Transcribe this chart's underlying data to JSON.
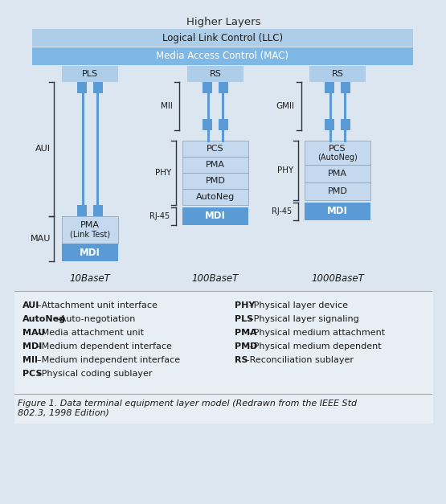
{
  "fig_bg": "#dce6f1",
  "box_blue_dark": "#5b9bd5",
  "box_blue_mid": "#7eb8e6",
  "box_blue_light": "#aecde8",
  "box_sublayer": "#c5d9ee",
  "title": "Higher Layers",
  "llc_label": "Logical Link Control (LLC)",
  "mac_label": "Media Access Control (MAC)",
  "col1_label": "10BaseT",
  "col2_label": "100BaseT",
  "col3_label": "1000BaseT",
  "legend_items_left": [
    [
      "AUI",
      "–Attachment unit interface"
    ],
    [
      "AutoNeg",
      "–Auto-negotiation"
    ],
    [
      "MAU",
      "–Media attachment unit"
    ],
    [
      "MDI",
      "–Medium dependent interface"
    ],
    [
      "MII",
      "–Medium independent interface"
    ],
    [
      "PCS",
      "–Physical coding sublayer"
    ]
  ],
  "legend_items_right": [
    [
      "PHY",
      "–Physical layer device"
    ],
    [
      "PLS",
      "–Physical layer signaling"
    ],
    [
      "PMA",
      "–Physical medium attachment"
    ],
    [
      "PMD",
      "–Physical medium dependent"
    ],
    [
      "RS",
      "–Reconciliation sublayer"
    ]
  ],
  "figure_caption": "Figure 1. Data terminal equipment layer model (Redrawn from the IEEE Std\n802.3, 1998 Edition)"
}
